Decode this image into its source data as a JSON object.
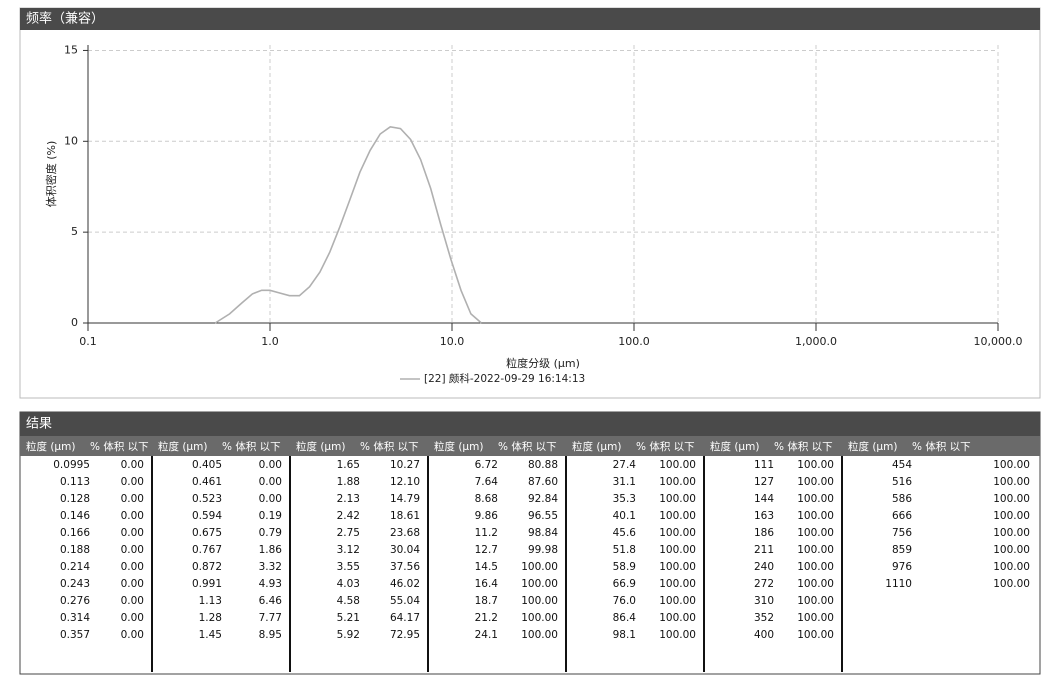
{
  "header": {
    "title": "频率（兼容）"
  },
  "chart_data": {
    "type": "line",
    "x_label": "粒度分级 (μm)",
    "y_label": "体积密度 (%)",
    "x": [
      0.5,
      0.6,
      0.7,
      0.8,
      0.9,
      1.0,
      1.13,
      1.28,
      1.45,
      1.65,
      1.88,
      2.13,
      2.42,
      2.75,
      3.12,
      3.55,
      4.03,
      4.58,
      5.21,
      5.92,
      6.72,
      7.64,
      8.68,
      9.86,
      11.2,
      12.7,
      14.5
    ],
    "series": [
      {
        "name": "[22] 颇科-2022-09-29 16:14:13",
        "color": "#b0b0b0",
        "values": [
          0,
          0.5,
          1.1,
          1.6,
          1.8,
          1.8,
          1.65,
          1.5,
          1.5,
          2.0,
          2.8,
          3.9,
          5.3,
          6.8,
          8.3,
          9.5,
          10.4,
          10.8,
          10.7,
          10.1,
          9.0,
          7.4,
          5.4,
          3.5,
          1.8,
          0.5,
          0
        ]
      }
    ],
    "xlim": [
      0.1,
      10000
    ],
    "log_x": true,
    "xticks": [
      0.1,
      {
        "value": 1,
        "label": "1.0"
      },
      {
        "value": 10,
        "label": "10.0"
      },
      {
        "value": 100,
        "label": "100.0"
      },
      {
        "value": 1000,
        "label": "1,000.0"
      },
      {
        "value": 10000,
        "label": "10,000.0"
      }
    ],
    "ylim": [
      0,
      15.3
    ],
    "yticks": [
      0,
      5,
      10,
      15
    ],
    "grid": true
  },
  "results": {
    "title": "结果",
    "columns": [
      "粒度 (μm)",
      "% 体积 以下"
    ],
    "groups": [
      {
        "rows": [
          [
            "0.0995",
            "0.00"
          ],
          [
            "0.113",
            "0.00"
          ],
          [
            "0.128",
            "0.00"
          ],
          [
            "0.146",
            "0.00"
          ],
          [
            "0.166",
            "0.00"
          ],
          [
            "0.188",
            "0.00"
          ],
          [
            "0.214",
            "0.00"
          ],
          [
            "0.243",
            "0.00"
          ],
          [
            "0.276",
            "0.00"
          ],
          [
            "0.314",
            "0.00"
          ],
          [
            "0.357",
            "0.00"
          ]
        ]
      },
      {
        "rows": [
          [
            "0.405",
            "0.00"
          ],
          [
            "0.461",
            "0.00"
          ],
          [
            "0.523",
            "0.00"
          ],
          [
            "0.594",
            "0.19"
          ],
          [
            "0.675",
            "0.79"
          ],
          [
            "0.767",
            "1.86"
          ],
          [
            "0.872",
            "3.32"
          ],
          [
            "0.991",
            "4.93"
          ],
          [
            "1.13",
            "6.46"
          ],
          [
            "1.28",
            "7.77"
          ],
          [
            "1.45",
            "8.95"
          ]
        ]
      },
      {
        "rows": [
          [
            "1.65",
            "10.27"
          ],
          [
            "1.88",
            "12.10"
          ],
          [
            "2.13",
            "14.79"
          ],
          [
            "2.42",
            "18.61"
          ],
          [
            "2.75",
            "23.68"
          ],
          [
            "3.12",
            "30.04"
          ],
          [
            "3.55",
            "37.56"
          ],
          [
            "4.03",
            "46.02"
          ],
          [
            "4.58",
            "55.04"
          ],
          [
            "5.21",
            "64.17"
          ],
          [
            "5.92",
            "72.95"
          ]
        ]
      },
      {
        "rows": [
          [
            "6.72",
            "80.88"
          ],
          [
            "7.64",
            "87.60"
          ],
          [
            "8.68",
            "92.84"
          ],
          [
            "9.86",
            "96.55"
          ],
          [
            "11.2",
            "98.84"
          ],
          [
            "12.7",
            "99.98"
          ],
          [
            "14.5",
            "100.00"
          ],
          [
            "16.4",
            "100.00"
          ],
          [
            "18.7",
            "100.00"
          ],
          [
            "21.2",
            "100.00"
          ],
          [
            "24.1",
            "100.00"
          ]
        ]
      },
      {
        "rows": [
          [
            "27.4",
            "100.00"
          ],
          [
            "31.1",
            "100.00"
          ],
          [
            "35.3",
            "100.00"
          ],
          [
            "40.1",
            "100.00"
          ],
          [
            "45.6",
            "100.00"
          ],
          [
            "51.8",
            "100.00"
          ],
          [
            "58.9",
            "100.00"
          ],
          [
            "66.9",
            "100.00"
          ],
          [
            "76.0",
            "100.00"
          ],
          [
            "86.4",
            "100.00"
          ],
          [
            "98.1",
            "100.00"
          ]
        ]
      },
      {
        "rows": [
          [
            "111",
            "100.00"
          ],
          [
            "127",
            "100.00"
          ],
          [
            "144",
            "100.00"
          ],
          [
            "163",
            "100.00"
          ],
          [
            "186",
            "100.00"
          ],
          [
            "211",
            "100.00"
          ],
          [
            "240",
            "100.00"
          ],
          [
            "272",
            "100.00"
          ],
          [
            "310",
            "100.00"
          ],
          [
            "352",
            "100.00"
          ],
          [
            "400",
            "100.00"
          ]
        ]
      },
      {
        "rows": [
          [
            "454",
            "100.00"
          ],
          [
            "516",
            "100.00"
          ],
          [
            "586",
            "100.00"
          ],
          [
            "666",
            "100.00"
          ],
          [
            "756",
            "100.00"
          ],
          [
            "859",
            "100.00"
          ],
          [
            "976",
            "100.00"
          ],
          [
            "1110",
            "100.00"
          ]
        ]
      }
    ]
  }
}
